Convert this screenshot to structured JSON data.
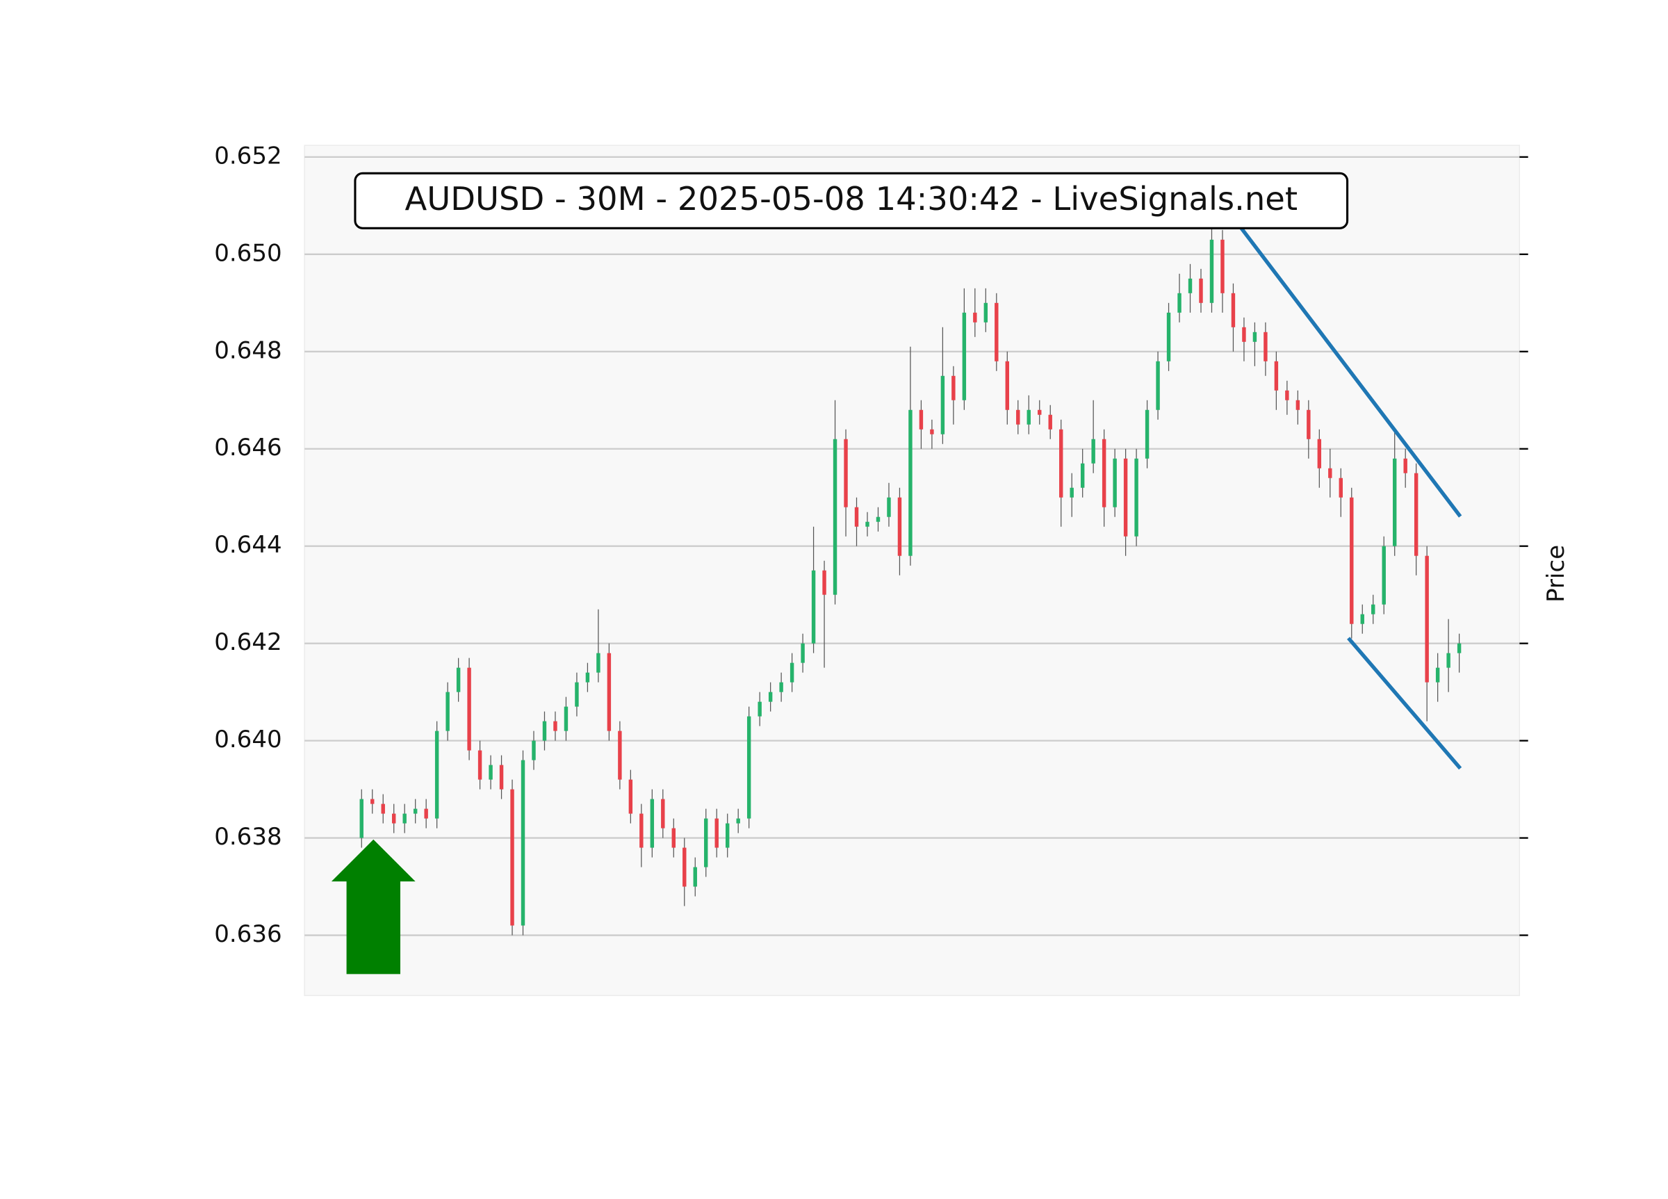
{
  "chart_data": {
    "type": "candlestick",
    "title": "AUDUSD - 30M - 2025-05-08 14:30:42 - LiveSignals.net",
    "ylabel": "Price",
    "ylim": [
      0.63476,
      0.65224
    ],
    "yticks": [
      0.636,
      0.638,
      {
        "value": 0.64,
        "label": "0.640"
      },
      0.642,
      0.644,
      0.646,
      0.648,
      {
        "value": 0.65,
        "label": "0.650"
      },
      0.652
    ],
    "xlim": [
      -5.3,
      107.6
    ],
    "grid": true,
    "colors": {
      "up": "#26b36b",
      "down": "#e8414a",
      "wick": "#555555"
    },
    "open": [
      0.638,
      0.6388,
      0.6387,
      0.6385,
      0.6383,
      0.6385,
      0.6386,
      0.6384,
      0.6402,
      0.641,
      0.6415,
      0.6398,
      0.6392,
      0.6395,
      0.639,
      0.6362,
      0.6396,
      0.64,
      0.6404,
      0.6402,
      0.6407,
      0.6412,
      0.6414,
      0.6418,
      0.6402,
      0.6392,
      0.6385,
      0.6378,
      0.6388,
      0.6382,
      0.6378,
      0.637,
      0.6374,
      0.6384,
      0.6378,
      0.6383,
      0.6384,
      0.6405,
      0.6408,
      0.641,
      0.6412,
      0.6416,
      0.642,
      0.6435,
      0.643,
      0.6462,
      0.6448,
      0.6444,
      0.6445,
      0.6446,
      0.645,
      0.6438,
      0.6468,
      0.6464,
      0.6463,
      0.6475,
      0.647,
      0.6488,
      0.6486,
      0.649,
      0.6478,
      0.6468,
      0.6465,
      0.6468,
      0.6467,
      0.6464,
      0.645,
      0.6452,
      0.6457,
      0.6462,
      0.6448,
      0.6458,
      0.6442,
      0.6458,
      0.6468,
      0.6478,
      0.6488,
      0.6492,
      0.6495,
      0.649,
      0.6503,
      0.6492,
      0.6485,
      0.6482,
      0.6484,
      0.6478,
      0.6472,
      0.647,
      0.6468,
      0.6462,
      0.6456,
      0.6454,
      0.645,
      0.6424,
      0.6426,
      0.6428,
      0.644,
      0.6458,
      0.6455,
      0.6438,
      0.6412,
      0.6415,
      0.6418
    ],
    "high": [
      0.639,
      0.639,
      0.6389,
      0.6387,
      0.6387,
      0.6388,
      0.6388,
      0.6404,
      0.6412,
      0.6417,
      0.6417,
      0.64,
      0.6397,
      0.6397,
      0.6392,
      0.6398,
      0.6402,
      0.6406,
      0.6406,
      0.6409,
      0.6414,
      0.6416,
      0.6427,
      0.642,
      0.6404,
      0.6394,
      0.6387,
      0.639,
      0.639,
      0.6384,
      0.638,
      0.6376,
      0.6386,
      0.6386,
      0.6385,
      0.6386,
      0.6407,
      0.641,
      0.6412,
      0.6414,
      0.6418,
      0.6422,
      0.6444,
      0.6437,
      0.647,
      0.6464,
      0.645,
      0.6447,
      0.6448,
      0.6453,
      0.6452,
      0.6481,
      0.647,
      0.6466,
      0.6485,
      0.6477,
      0.6493,
      0.6493,
      0.6493,
      0.6492,
      0.648,
      0.647,
      0.6471,
      0.647,
      0.6469,
      0.6466,
      0.6455,
      0.646,
      0.647,
      0.6464,
      0.646,
      0.646,
      0.646,
      0.647,
      0.648,
      0.649,
      0.6496,
      0.6498,
      0.6497,
      0.6508,
      0.6505,
      0.6494,
      0.6487,
      0.6486,
      0.6486,
      0.648,
      0.6474,
      0.6472,
      0.647,
      0.6464,
      0.646,
      0.6456,
      0.6452,
      0.6428,
      0.643,
      0.6442,
      0.6464,
      0.646,
      0.6457,
      0.644,
      0.6418,
      0.6425,
      0.6422
    ],
    "low": [
      0.6378,
      0.6385,
      0.6383,
      0.6381,
      0.6381,
      0.6383,
      0.6382,
      0.6382,
      0.64,
      0.6408,
      0.6396,
      0.639,
      0.639,
      0.6388,
      0.636,
      0.636,
      0.6394,
      0.6398,
      0.64,
      0.64,
      0.6405,
      0.641,
      0.6412,
      0.64,
      0.639,
      0.6383,
      0.6374,
      0.6376,
      0.638,
      0.6376,
      0.6366,
      0.6368,
      0.6372,
      0.6376,
      0.6376,
      0.6381,
      0.6382,
      0.6403,
      0.6406,
      0.6408,
      0.641,
      0.6414,
      0.6418,
      0.6415,
      0.6428,
      0.6442,
      0.644,
      0.6442,
      0.6443,
      0.6444,
      0.6434,
      0.6436,
      0.646,
      0.646,
      0.6461,
      0.6465,
      0.6468,
      0.6483,
      0.6484,
      0.6476,
      0.6465,
      0.6463,
      0.6463,
      0.6465,
      0.6462,
      0.6444,
      0.6446,
      0.645,
      0.6455,
      0.6444,
      0.6446,
      0.6438,
      0.644,
      0.6456,
      0.6466,
      0.6476,
      0.6486,
      0.6488,
      0.6488,
      0.6488,
      0.6488,
      0.648,
      0.6478,
      0.6477,
      0.6475,
      0.6468,
      0.6467,
      0.6465,
      0.6458,
      0.6452,
      0.645,
      0.6446,
      0.6421,
      0.6422,
      0.6424,
      0.6426,
      0.6438,
      0.6452,
      0.6434,
      0.6404,
      0.6408,
      0.641,
      0.6414
    ],
    "close": [
      0.6388,
      0.6387,
      0.6385,
      0.6383,
      0.6385,
      0.6386,
      0.6384,
      0.6402,
      0.641,
      0.6415,
      0.6398,
      0.6392,
      0.6395,
      0.639,
      0.6362,
      0.6396,
      0.64,
      0.6404,
      0.6402,
      0.6407,
      0.6412,
      0.6414,
      0.6418,
      0.6402,
      0.6392,
      0.6385,
      0.6378,
      0.6388,
      0.6382,
      0.6378,
      0.637,
      0.6374,
      0.6384,
      0.6378,
      0.6383,
      0.6384,
      0.6405,
      0.6408,
      0.641,
      0.6412,
      0.6416,
      0.642,
      0.6435,
      0.643,
      0.6462,
      0.6448,
      0.6444,
      0.6445,
      0.6446,
      0.645,
      0.6438,
      0.6468,
      0.6464,
      0.6463,
      0.6475,
      0.647,
      0.6488,
      0.6486,
      0.649,
      0.6478,
      0.6468,
      0.6465,
      0.6468,
      0.6467,
      0.6464,
      0.645,
      0.6452,
      0.6457,
      0.6462,
      0.6448,
      0.6458,
      0.6442,
      0.6458,
      0.6468,
      0.6478,
      0.6488,
      0.6492,
      0.6495,
      0.649,
      0.6503,
      0.6492,
      0.6485,
      0.6482,
      0.6484,
      0.6478,
      0.6472,
      0.647,
      0.6468,
      0.6462,
      0.6456,
      0.6454,
      0.645,
      0.6424,
      0.6426,
      0.6428,
      0.644,
      0.6458,
      0.6455,
      0.6438,
      0.6412,
      0.6415,
      0.6418,
      0.642
    ],
    "trendlines": [
      {
        "color": "#1f77b4",
        "x": [
          81.6,
          102.1
        ],
        "y": [
          0.65058,
          0.64461
        ]
      },
      {
        "color": "#1f77b4",
        "x": [
          91.7,
          102.1
        ],
        "y": [
          0.64211,
          0.63943
        ]
      }
    ]
  }
}
